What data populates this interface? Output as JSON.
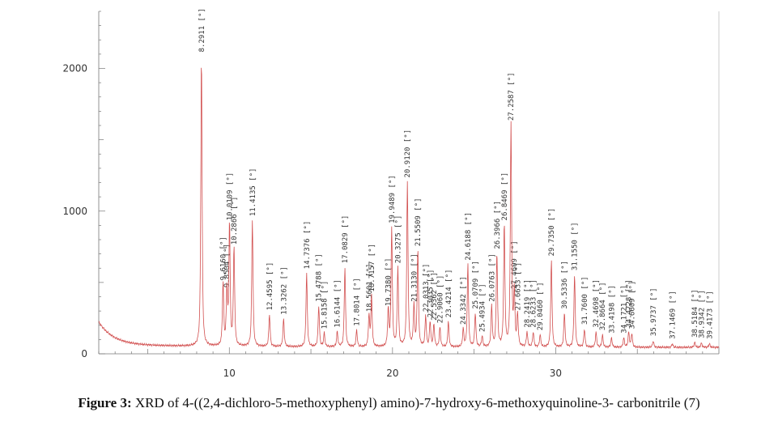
{
  "figure": {
    "caption_prefix": "Figure 3:",
    "caption_text": " XRD of 4-((2,4-dichloro-5-methoxyphenyl) amino)-7-hydroxy-6-methoxyquinoline-3- carbonitrile (7)"
  },
  "chart_data": {
    "type": "line",
    "title": "",
    "xlabel": "",
    "ylabel": "",
    "xlim": [
      2,
      40
    ],
    "ylim": [
      0,
      2400
    ],
    "xticks": [
      10,
      20,
      30
    ],
    "yticks": [
      0,
      1000,
      2000
    ],
    "grid": false,
    "line_color": "#d25050",
    "peaks": [
      {
        "x": 8.2911,
        "y": 2080,
        "label": "8.2911 [°]"
      },
      {
        "x": 9.616,
        "y": 480,
        "label": "9.6160 [°]"
      },
      {
        "x": 9.8504,
        "y": 430,
        "label": "9.8504 [°]"
      },
      {
        "x": 10.0109,
        "y": 900,
        "label": "10.0109 [°]"
      },
      {
        "x": 10.2866,
        "y": 730,
        "label": "10.2866 [°]"
      },
      {
        "x": 11.4135,
        "y": 930,
        "label": "11.4135 [°]"
      },
      {
        "x": 12.4595,
        "y": 270,
        "label": "12.4595 [°]"
      },
      {
        "x": 13.3262,
        "y": 240,
        "label": "13.3262 [°]"
      },
      {
        "x": 14.7376,
        "y": 560,
        "label": "14.7376 [°]"
      },
      {
        "x": 15.4788,
        "y": 330,
        "label": "15.4788 [°]"
      },
      {
        "x": 15.8158,
        "y": 140,
        "label": "15.8158 [°]"
      },
      {
        "x": 16.6144,
        "y": 150,
        "label": "16.6144 [°]"
      },
      {
        "x": 17.0829,
        "y": 600,
        "label": "17.0829 [°]"
      },
      {
        "x": 17.8014,
        "y": 160,
        "label": "17.8014 [°]"
      },
      {
        "x": 18.5601,
        "y": 260,
        "label": "18.5601 [°]"
      },
      {
        "x": 18.7157,
        "y": 400,
        "label": "18.7157 [°]"
      },
      {
        "x": 19.738,
        "y": 300,
        "label": "19.7380 [°]"
      },
      {
        "x": 19.9489,
        "y": 880,
        "label": "19.9489 [°]"
      },
      {
        "x": 20.3275,
        "y": 600,
        "label": "20.3275 [°]"
      },
      {
        "x": 20.912,
        "y": 1200,
        "label": "20.9120 [°]"
      },
      {
        "x": 21.313,
        "y": 330,
        "label": "21.3130 [°]"
      },
      {
        "x": 21.5509,
        "y": 720,
        "label": "21.5509 [°]"
      },
      {
        "x": 22.0313,
        "y": 260,
        "label": "22.0313 [°]"
      },
      {
        "x": 22.3035,
        "y": 220,
        "label": "22.3035 [°]"
      },
      {
        "x": 22.5362,
        "y": 200,
        "label": "22.5362 [°]"
      },
      {
        "x": 22.906,
        "y": 180,
        "label": "22.9060 [°]"
      },
      {
        "x": 23.4214,
        "y": 220,
        "label": "23.4214 [°]"
      },
      {
        "x": 24.3342,
        "y": 170,
        "label": "24.3342 [°]"
      },
      {
        "x": 24.6188,
        "y": 620,
        "label": "24.6188 [°]"
      },
      {
        "x": 25.0709,
        "y": 280,
        "label": "25.0709 [°]"
      },
      {
        "x": 25.4934,
        "y": 120,
        "label": "25.4934 [°]"
      },
      {
        "x": 26.0763,
        "y": 330,
        "label": "26.0763 [°]"
      },
      {
        "x": 26.3966,
        "y": 700,
        "label": "26.3966 [°]"
      },
      {
        "x": 26.8469,
        "y": 900,
        "label": "26.8469 [°]"
      },
      {
        "x": 27.2587,
        "y": 1600,
        "label": "27.2587 [°]"
      },
      {
        "x": 27.4609,
        "y": 420,
        "label": "27.4609 [°]"
      },
      {
        "x": 27.6633,
        "y": 270,
        "label": "27.6633 [°]"
      },
      {
        "x": 28.2419,
        "y": 150,
        "label": "28.2419 [°]"
      },
      {
        "x": 28.6233,
        "y": 150,
        "label": "28.6233 [°]"
      },
      {
        "x": 29.046,
        "y": 130,
        "label": "29.0460 [°]"
      },
      {
        "x": 29.735,
        "y": 650,
        "label": "29.7350 [°]"
      },
      {
        "x": 30.5336,
        "y": 280,
        "label": "30.5336 [°]"
      },
      {
        "x": 31.155,
        "y": 550,
        "label": "31.1550 [°]"
      },
      {
        "x": 31.76,
        "y": 170,
        "label": "31.7600 [°]"
      },
      {
        "x": 32.4698,
        "y": 150,
        "label": "32.4698 [°]"
      },
      {
        "x": 32.8664,
        "y": 130,
        "label": "32.8664 [°]"
      },
      {
        "x": 33.4198,
        "y": 110,
        "label": "33.4198 [°]"
      },
      {
        "x": 34.1721,
        "y": 110,
        "label": "34.1721 [°]"
      },
      {
        "x": 34.4728,
        "y": 150,
        "label": "34.4728 [°]"
      },
      {
        "x": 34.6609,
        "y": 140,
        "label": "34.6609 [°]"
      },
      {
        "x": 35.9737,
        "y": 90,
        "label": "35.9737 [°]"
      },
      {
        "x": 37.1469,
        "y": 70,
        "label": "37.1469 [°]"
      },
      {
        "x": 38.5184,
        "y": 80,
        "label": "38.5184 [°]"
      },
      {
        "x": 38.9342,
        "y": 75,
        "label": "38.9342 [°]"
      },
      {
        "x": 39.4173,
        "y": 70,
        "label": "39.4173 [°]"
      }
    ]
  }
}
